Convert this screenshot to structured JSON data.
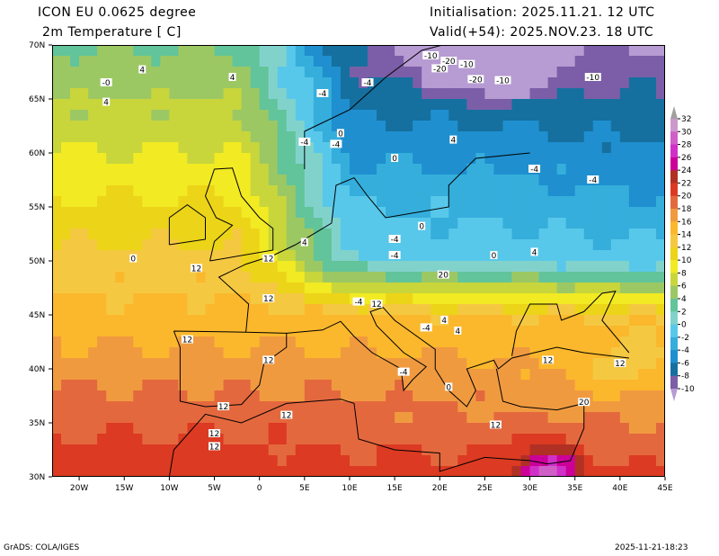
{
  "header": {
    "title": "ICON EU 0.0625 degree",
    "variable": "2m Temperature [ C]",
    "initialisation": "Initialisation: 2025.11.21. 12 UTC",
    "valid": "Valid(+54): 2025.NOV.23. 18 UTC"
  },
  "axes": {
    "lat_labels": [
      "70N",
      "65N",
      "60N",
      "55N",
      "50N",
      "45N",
      "40N",
      "35N",
      "30N"
    ],
    "lat_values": [
      70,
      65,
      60,
      55,
      50,
      45,
      40,
      35,
      30
    ],
    "lon_labels": [
      "20W",
      "15W",
      "10W",
      "5W",
      "0",
      "5E",
      "10E",
      "15E",
      "20E",
      "25E",
      "30E",
      "35E",
      "40E",
      "45E"
    ],
    "lon_values": [
      -20,
      -15,
      -10,
      -5,
      0,
      5,
      10,
      15,
      20,
      25,
      30,
      35,
      40,
      45
    ],
    "lon_range": [
      -23,
      45
    ],
    "lat_range": [
      30,
      70
    ]
  },
  "colorbar": {
    "levels": [
      -10,
      -8,
      -6,
      -4,
      -2,
      0,
      2,
      4,
      6,
      8,
      10,
      12,
      14,
      16,
      18,
      20,
      22,
      24,
      26,
      28,
      30,
      32
    ],
    "labels": [
      "-10",
      "-8",
      "-6",
      "-4",
      "-2",
      "0",
      "2",
      "4",
      "6",
      "8",
      "10",
      "12",
      "14",
      "16",
      "18",
      "20",
      "22",
      "24",
      "26",
      "28",
      "30",
      "32"
    ],
    "colors": [
      "#b79bd3",
      "#7b5ea7",
      "#15709f",
      "#1f8fcf",
      "#35aedc",
      "#58c8ea",
      "#82d2cc",
      "#62c49a",
      "#9cc864",
      "#c8d63c",
      "#f2ea22",
      "#ecd418",
      "#f5c842",
      "#fbb82c",
      "#f09a40",
      "#e4683e",
      "#dc3a22",
      "#b03024",
      "#cc0099",
      "#d030c8",
      "#d060c8",
      "#cc99cc",
      "#a0a0a0"
    ]
  },
  "contour_labels": [
    "-10",
    "-20",
    "-10",
    "-20",
    "-20",
    "-10",
    "-10",
    "-4",
    "-4",
    "4",
    "4",
    "-0",
    "4",
    "0",
    "-4",
    "-4",
    "0",
    "4",
    "-4",
    "-4",
    "0",
    "-4",
    "-4",
    "0",
    "4",
    "4",
    "0",
    "12",
    "12",
    "12",
    "12",
    "12",
    "12",
    "12",
    "12",
    "12",
    "12",
    "20",
    "20",
    "12",
    "-4",
    "-4",
    "0",
    "4",
    "-4",
    "12",
    "12",
    "4"
  ],
  "footer": {
    "left": "GrADS: COLA/IGES",
    "right": "2025-11-21-18:23"
  }
}
